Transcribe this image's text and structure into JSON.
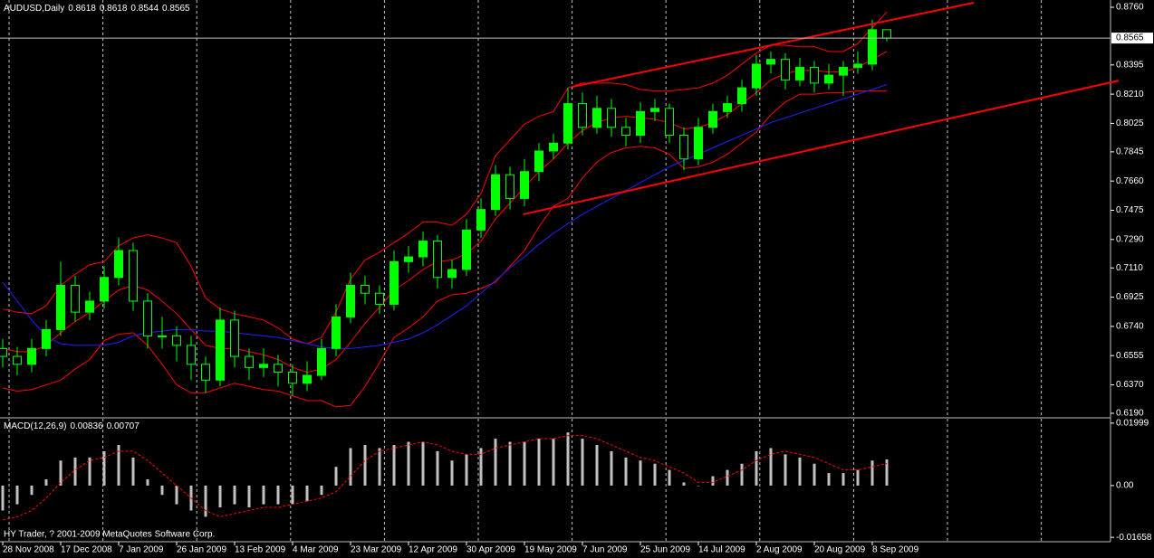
{
  "chart_data": [
    {
      "type": "candlestick",
      "title": "AUDUSD,Daily",
      "ohlc_header": [
        0.8618,
        0.8618,
        0.8544,
        0.8565
      ],
      "categories": [
        "28 Nov 2008",
        null,
        null,
        null,
        "17 Dec 2008",
        null,
        null,
        null,
        "7 Jan 2009",
        null,
        null,
        null,
        "26 Jan 2009",
        null,
        null,
        null,
        "13 Feb 2009",
        null,
        null,
        null,
        "4 Mar 2009",
        null,
        null,
        null,
        "23 Mar 2009",
        null,
        null,
        null,
        "12 Apr 2009",
        null,
        null,
        null,
        "30 Apr 2009",
        null,
        null,
        null,
        "19 May 2009",
        null,
        null,
        null,
        "7 Jun 2009",
        null,
        null,
        null,
        "25 Jun 2009",
        null,
        null,
        null,
        "14 Jul 2009",
        null,
        null,
        null,
        "2 Aug 2009",
        null,
        null,
        null,
        "20 Aug 2009",
        null,
        null,
        null,
        "8 Sep 2009",
        null
      ],
      "open": [
        0.66,
        0.655,
        0.65,
        0.66,
        0.672,
        0.7,
        0.683,
        0.69,
        0.705,
        0.722,
        0.69,
        0.668,
        0.668,
        0.662,
        0.65,
        0.64,
        0.678,
        0.655,
        0.648,
        0.65,
        0.645,
        0.638,
        0.643,
        0.66,
        0.68,
        0.7,
        0.695,
        0.688,
        0.715,
        0.718,
        0.728,
        0.705,
        0.71,
        0.735,
        0.748,
        0.77,
        0.755,
        0.772,
        0.785,
        0.79,
        0.815,
        0.8,
        0.812,
        0.8,
        0.795,
        0.81,
        0.812,
        0.795,
        0.78,
        0.8,
        0.81,
        0.815,
        0.825,
        0.84,
        0.843,
        0.83,
        0.838,
        0.828,
        0.833,
        0.838,
        0.84,
        0.8618
      ],
      "high": [
        0.666,
        0.661,
        0.666,
        0.678,
        0.715,
        0.706,
        0.696,
        0.712,
        0.73,
        0.727,
        0.695,
        0.68,
        0.674,
        0.668,
        0.655,
        0.686,
        0.684,
        0.66,
        0.66,
        0.656,
        0.65,
        0.652,
        0.666,
        0.688,
        0.708,
        0.706,
        0.7,
        0.722,
        0.725,
        0.734,
        0.732,
        0.716,
        0.742,
        0.755,
        0.776,
        0.775,
        0.78,
        0.79,
        0.796,
        0.825,
        0.822,
        0.82,
        0.818,
        0.806,
        0.816,
        0.818,
        0.815,
        0.8,
        0.806,
        0.815,
        0.82,
        0.83,
        0.846,
        0.848,
        0.847,
        0.844,
        0.842,
        0.84,
        0.842,
        0.848,
        0.868,
        0.8618
      ],
      "low": [
        0.648,
        0.643,
        0.645,
        0.655,
        0.668,
        0.677,
        0.678,
        0.685,
        0.7,
        0.684,
        0.66,
        0.66,
        0.652,
        0.64,
        0.632,
        0.636,
        0.648,
        0.64,
        0.642,
        0.636,
        0.63,
        0.633,
        0.64,
        0.655,
        0.676,
        0.688,
        0.682,
        0.684,
        0.708,
        0.712,
        0.698,
        0.698,
        0.706,
        0.73,
        0.744,
        0.748,
        0.75,
        0.766,
        0.78,
        0.786,
        0.795,
        0.796,
        0.794,
        0.788,
        0.79,
        0.804,
        0.79,
        0.773,
        0.776,
        0.796,
        0.806,
        0.81,
        0.82,
        0.834,
        0.824,
        0.826,
        0.822,
        0.824,
        0.82,
        0.834,
        0.836,
        0.8544
      ],
      "close": [
        0.655,
        0.65,
        0.66,
        0.672,
        0.7,
        0.683,
        0.69,
        0.705,
        0.722,
        0.69,
        0.668,
        0.668,
        0.662,
        0.65,
        0.64,
        0.678,
        0.655,
        0.648,
        0.65,
        0.645,
        0.638,
        0.643,
        0.66,
        0.68,
        0.7,
        0.695,
        0.688,
        0.715,
        0.718,
        0.728,
        0.705,
        0.71,
        0.735,
        0.748,
        0.77,
        0.755,
        0.772,
        0.785,
        0.79,
        0.815,
        0.8,
        0.812,
        0.8,
        0.795,
        0.81,
        0.812,
        0.795,
        0.78,
        0.8,
        0.81,
        0.815,
        0.825,
        0.84,
        0.843,
        0.83,
        0.838,
        0.828,
        0.833,
        0.838,
        0.84,
        0.8618,
        0.8565
      ],
      "up_color": "#00ff00",
      "down_color": "#000000",
      "wick_color": "#00ff00",
      "lines": [
        {
          "color": "#ff0000",
          "values": [
            0.685,
            0.683,
            0.682,
            0.687,
            0.7,
            0.707,
            0.713,
            0.715,
            0.725,
            0.73,
            0.732,
            0.73,
            0.727,
            0.712,
            0.692,
            0.685,
            0.682,
            0.68,
            0.678,
            0.673,
            0.666,
            0.663,
            0.667,
            0.683,
            0.704,
            0.716,
            0.721,
            0.727,
            0.733,
            0.74,
            0.74,
            0.738,
            0.745,
            0.758,
            0.782,
            0.792,
            0.802,
            0.807,
            0.81,
            0.825,
            0.828,
            0.828,
            0.828,
            0.827,
            0.824,
            0.823,
            0.823,
            0.824,
            0.825,
            0.828,
            0.833,
            0.84,
            0.847,
            0.852,
            0.852,
            0.851,
            0.851,
            0.848,
            0.848,
            0.853,
            0.863,
            0.873
          ]
        },
        {
          "color": "#ff0000",
          "values": [
            0.66,
            0.658,
            0.658,
            0.662,
            0.67,
            0.677,
            0.683,
            0.69,
            0.697,
            0.7,
            0.697,
            0.69,
            0.682,
            0.672,
            0.662,
            0.66,
            0.66,
            0.658,
            0.656,
            0.653,
            0.648,
            0.645,
            0.647,
            0.653,
            0.664,
            0.676,
            0.686,
            0.697,
            0.703,
            0.71,
            0.715,
            0.716,
            0.72,
            0.728,
            0.742,
            0.752,
            0.762,
            0.772,
            0.78,
            0.79,
            0.798,
            0.803,
            0.806,
            0.807,
            0.806,
            0.805,
            0.803,
            0.799,
            0.8,
            0.803,
            0.808,
            0.815,
            0.822,
            0.83,
            0.834,
            0.836,
            0.836,
            0.835,
            0.835,
            0.838,
            0.843,
            0.848
          ]
        },
        {
          "color": "#ff0000",
          "values": [
            0.635,
            0.633,
            0.634,
            0.637,
            0.64,
            0.647,
            0.653,
            0.665,
            0.669,
            0.67,
            0.662,
            0.65,
            0.637,
            0.632,
            0.632,
            0.635,
            0.638,
            0.636,
            0.634,
            0.633,
            0.63,
            0.627,
            0.627,
            0.623,
            0.624,
            0.636,
            0.651,
            0.667,
            0.673,
            0.68,
            0.69,
            0.694,
            0.695,
            0.698,
            0.702,
            0.712,
            0.722,
            0.737,
            0.75,
            0.755,
            0.768,
            0.778,
            0.784,
            0.787,
            0.788,
            0.787,
            0.783,
            0.774,
            0.775,
            0.778,
            0.783,
            0.79,
            0.797,
            0.808,
            0.816,
            0.821,
            0.821,
            0.822,
            0.822,
            0.823,
            0.823,
            0.823
          ]
        },
        {
          "color": "#2020ff",
          "values": [
            0.702,
            0.69,
            0.678,
            0.668,
            0.663,
            0.662,
            0.662,
            0.662,
            0.664,
            0.668,
            0.67,
            0.671,
            0.672,
            0.672,
            0.671,
            0.671,
            0.67,
            0.669,
            0.668,
            0.667,
            0.665,
            0.663,
            0.661,
            0.66,
            0.66,
            0.661,
            0.662,
            0.664,
            0.666,
            0.67,
            0.675,
            0.681,
            0.687,
            0.695,
            0.703,
            0.711,
            0.718,
            0.726,
            0.733,
            0.739,
            0.745,
            0.75,
            0.755,
            0.76,
            0.765,
            0.77,
            0.775,
            0.779,
            0.783,
            0.787,
            0.791,
            0.795,
            0.799,
            0.803,
            0.806,
            0.809,
            0.812,
            0.815,
            0.818,
            0.821,
            0.824,
            0.827
          ]
        }
      ],
      "trendlines": [
        {
          "color": "#ff0000",
          "x": [
            39.3,
            67
          ],
          "values": [
            0.8256,
            0.8789
          ]
        },
        {
          "color": "#ff0000",
          "x": [
            35.9,
            77
          ],
          "values": [
            0.7449,
            0.8296
          ]
        }
      ],
      "ylim": [
        0.6167,
        0.8806
      ],
      "yticks": [
        {
          "value": 0.876,
          "label": "0.8760"
        },
        0.8395,
        {
          "value": 0.821,
          "label": "0.8210"
        },
        0.8025,
        0.7845,
        {
          "value": 0.766,
          "label": "0.7660"
        },
        0.7475,
        {
          "value": 0.729,
          "label": "0.7290"
        },
        {
          "value": 0.711,
          "label": "0.7110"
        },
        0.6925,
        {
          "value": 0.674,
          "label": "0.6740"
        },
        0.6555,
        {
          "value": 0.637,
          "label": "0.6370"
        },
        {
          "value": 0.619,
          "label": "0.6190"
        }
      ],
      "grid": true
    },
    {
      "type": "bar",
      "title": "MACD(12,26,9)",
      "header_values": [
        0.00836,
        0.00707
      ],
      "color": "#c0c0c0",
      "values": [
        -0.008,
        -0.006,
        -0.003,
        0.002,
        0.008,
        0.009,
        0.009,
        0.011,
        0.013,
        0.009,
        0.002,
        -0.003,
        -0.006,
        -0.008,
        -0.01,
        -0.007,
        -0.006,
        -0.007,
        -0.006,
        -0.006,
        -0.006,
        -0.005,
        -0.003,
        0.006,
        0.012,
        0.013,
        0.012,
        0.013,
        0.014,
        0.014,
        0.011,
        0.008,
        0.01,
        0.012,
        0.015,
        0.014,
        0.014,
        0.015,
        0.015,
        0.017,
        0.015,
        0.013,
        0.011,
        0.009,
        0.008,
        0.007,
        0.005,
        0.001,
        0.0,
        0.003,
        0.005,
        0.007,
        0.011,
        0.012,
        0.01,
        0.009,
        0.007,
        0.004,
        0.004,
        0.005,
        0.008,
        0.00836
      ],
      "series": [
        {
          "color": "#ff0000",
          "style": "dashed",
          "values": [
            -0.011,
            -0.01,
            -0.008,
            -0.004,
            0.001,
            0.005,
            0.008,
            0.009,
            0.011,
            0.011,
            0.008,
            0.004,
            0.0,
            -0.004,
            -0.008,
            -0.01,
            -0.009,
            -0.008,
            -0.007,
            -0.007,
            -0.006,
            -0.005,
            -0.004,
            -0.002,
            0.003,
            0.008,
            0.011,
            0.012,
            0.013,
            0.014,
            0.013,
            0.011,
            0.01,
            0.01,
            0.012,
            0.013,
            0.014,
            0.015,
            0.015,
            0.016,
            0.016,
            0.015,
            0.013,
            0.011,
            0.009,
            0.008,
            0.006,
            0.004,
            0.001,
            0.001,
            0.003,
            0.005,
            0.008,
            0.01,
            0.011,
            0.01,
            0.009,
            0.007,
            0.005,
            0.005,
            0.006,
            0.00707
          ]
        }
      ],
      "ylim": [
        -0.0177,
        0.0214
      ],
      "yticks": [
        0.01999,
        {
          "value": 0,
          "label": "0.00"
        },
        -0.01658
      ]
    }
  ],
  "footer": "HY Trader, ? 2001-2009 MetaQuotes Software Corp."
}
